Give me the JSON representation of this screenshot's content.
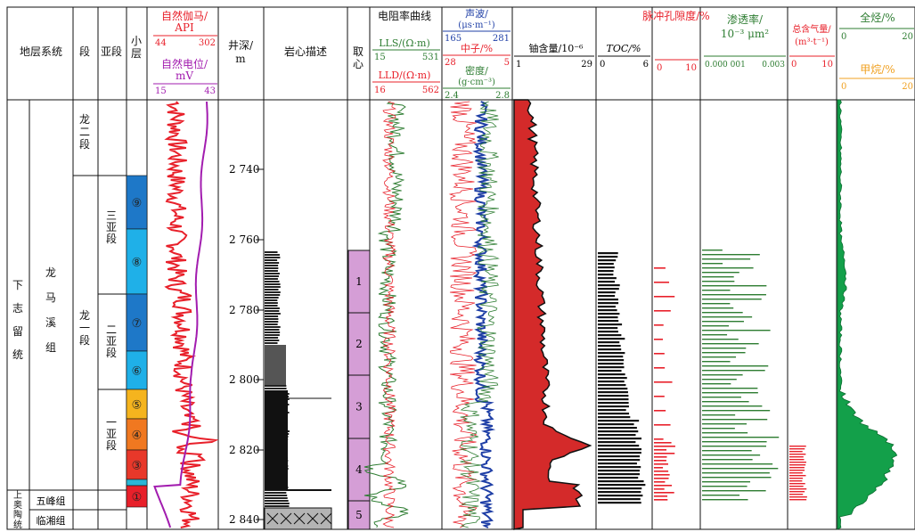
{
  "columns": {
    "strat_system": "地层系统",
    "duan": "段",
    "yaduan": "亚段",
    "xiaoceng": "小层",
    "depth": "井深/",
    "depth_unit": "m",
    "core_desc": "岩心描述",
    "coring": "取心",
    "resist": "电阻率曲线",
    "uranium": "铀含量/10⁻⁶",
    "toc": "TOC/%",
    "pulse_porosity": "脉冲孔隙度/%",
    "permeability": "渗透率/",
    "perm_unit": "10⁻³ μm²",
    "gas": "总含气量/",
    "gas_unit": "(m³·t⁻¹)",
    "total_hc": "全烃/%",
    "methane": "甲烷/%"
  },
  "tracks": {
    "gr": {
      "label": "自然伽马/",
      "unit": "API",
      "min": "44",
      "max": "302",
      "color": "#e8202a"
    },
    "sp": {
      "label": "自然电位/",
      "unit": "mV",
      "min": "15",
      "max": "43",
      "color": "#a21caf"
    },
    "lls": {
      "label": "LLS/(Ω·m)",
      "min": "15",
      "max": "531",
      "color": "#2e7d32"
    },
    "lld": {
      "label": "LLD/(Ω·m)",
      "min": "16",
      "max": "562",
      "color": "#e8202a"
    },
    "ac": {
      "label": "声波/",
      "unit": "(μs·m⁻¹)",
      "min": "165",
      "max": "281",
      "color": "#1f3fa6"
    },
    "cnl": {
      "label": "中子/%",
      "min": "28",
      "max": "5",
      "color": "#e8202a"
    },
    "den": {
      "label": "密度/",
      "unit": "(g·cm⁻³)",
      "min": "2.4",
      "max": "2.8",
      "color": "#2e7d32"
    },
    "u": {
      "min": "1",
      "max": "29"
    },
    "toc": {
      "min": "0",
      "max": "6"
    },
    "por": {
      "min": "0",
      "max": "10",
      "color": "#e8202a"
    },
    "perm": {
      "min": "0.000 001",
      "max": "0.003",
      "color": "#2e7d32"
    },
    "gas": {
      "min": "0",
      "max": "10",
      "color": "#e8202a"
    },
    "thc": {
      "min": "0",
      "max": "20",
      "color": "#2e7d32"
    },
    "ch4": {
      "min": "0",
      "max": "20",
      "color": "#f0a020"
    }
  },
  "strata": {
    "system": [
      "下",
      "志",
      "留",
      "统"
    ],
    "group": [
      "龙",
      "马",
      "溪",
      "组"
    ],
    "ordovician": [
      "上",
      "奥",
      "陶",
      "统"
    ],
    "wufeng": "五峰组",
    "linxiang": "临湘组",
    "duan_long2": [
      "龙",
      "二",
      "段"
    ],
    "duan_long1": [
      "龙",
      "一",
      "段"
    ],
    "ya3": [
      "三",
      "亚",
      "段"
    ],
    "ya2": [
      "二",
      "亚",
      "段"
    ],
    "ya1": [
      "一",
      "亚",
      "段"
    ]
  },
  "layers": [
    {
      "label": "⑨",
      "color": "#1e78c8"
    },
    {
      "label": "⑧",
      "color": "#1fb0e8"
    },
    {
      "label": "⑦",
      "color": "#1e78c8"
    },
    {
      "label": "⑥",
      "color": "#1fb0e8"
    },
    {
      "label": "⑤",
      "color": "#f5b41e"
    },
    {
      "label": "④",
      "color": "#f07820"
    },
    {
      "label": "③",
      "color": "#e8382a"
    },
    {
      "label": "②",
      "color": "#2bb6d6"
    },
    {
      "label": "①",
      "color": "#e8202a"
    }
  ],
  "depth_ticks": [
    "2 740",
    "2 760",
    "2 780",
    "2 800",
    "2 820",
    "2 840"
  ],
  "cores": [
    "1",
    "2",
    "3",
    "4",
    "5"
  ]
}
